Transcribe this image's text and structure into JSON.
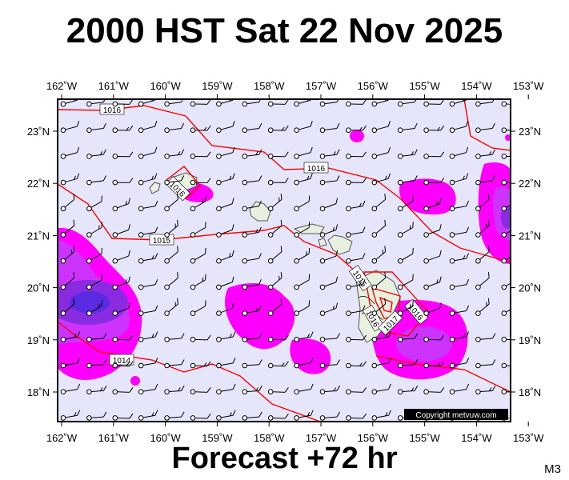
{
  "title": "2000 HST Sat 22 Nov 2025",
  "subtitle": "Forecast +72 hr",
  "model": "M3",
  "copyright": "Copyright metvuw.com",
  "map": {
    "lon_labels": [
      "162˚W",
      "161˚W",
      "160˚W",
      "159˚W",
      "158˚W",
      "157˚W",
      "156˚W",
      "155˚W",
      "154˚W",
      "153˚W"
    ],
    "lat_labels": [
      "23˚N",
      "22˚N",
      "21˚N",
      "20˚N",
      "19˚N",
      "18˚N"
    ],
    "isobar_labels": [
      "1016",
      "1016",
      "1016",
      "1015",
      "1015",
      "1014",
      "1016",
      "1016",
      "1017"
    ],
    "colors": {
      "background": "#e6e6fa",
      "rain_light": "#ff00ff",
      "rain_medium": "#cc33ff",
      "rain_heavy": "#8a2be2",
      "rain_core": "#5a2be2",
      "isobar": "#ff0000",
      "land": "#e8f0e0"
    }
  }
}
